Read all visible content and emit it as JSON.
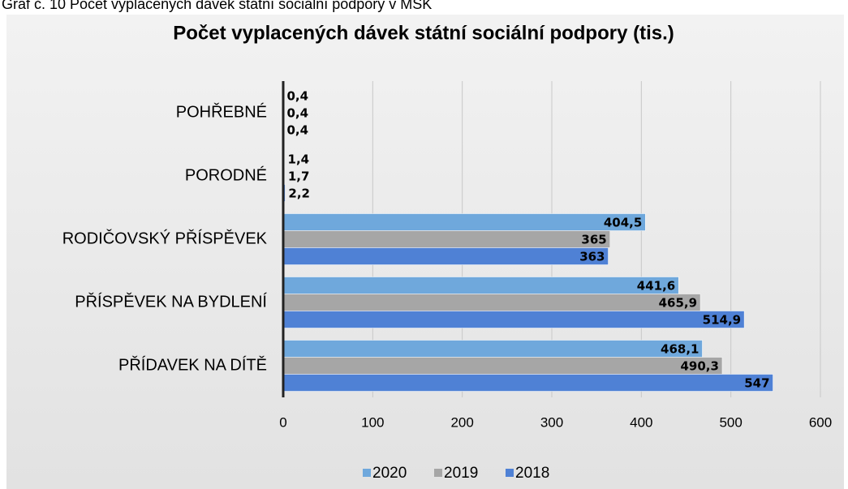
{
  "caption": "Graf č. 10 Počet vyplacených dávek státní sociální podpory v MSK",
  "chart_data": {
    "type": "bar",
    "orientation": "horizontal",
    "title": "Počet vyplacených dávek státní sociální podpory (tis.)",
    "categories": [
      "POHŘEBNÉ",
      "PORODNÉ",
      "RODIČOVSKÝ PŘÍSPĚVEK",
      "PŘÍSPĚVEK NA BYDLENÍ",
      "PŘÍDAVEK NA DÍTĚ"
    ],
    "series": [
      {
        "name": "2020",
        "color": "#6fa8dc",
        "values": [
          0.4,
          1.4,
          404.5,
          441.6,
          468.1
        ],
        "value_labels": [
          "0,4",
          "1,4",
          "404,5",
          "441,6",
          "468,1"
        ]
      },
      {
        "name": "2019",
        "color": "#a6a6a6",
        "values": [
          0.4,
          1.7,
          365,
          465.9,
          490.3
        ],
        "value_labels": [
          "0,4",
          "1,7",
          "365",
          "465,9",
          "490,3"
        ]
      },
      {
        "name": "2018",
        "color": "#4f81d5",
        "values": [
          0.4,
          2.2,
          363,
          514.9,
          547
        ],
        "value_labels": [
          "0,4",
          "2,2",
          "363",
          "514,9",
          "547"
        ]
      }
    ],
    "xlim": [
      0,
      600
    ],
    "xticks": [
      0,
      100,
      200,
      300,
      400,
      500,
      600
    ],
    "grid": true,
    "legend": "bottom"
  }
}
